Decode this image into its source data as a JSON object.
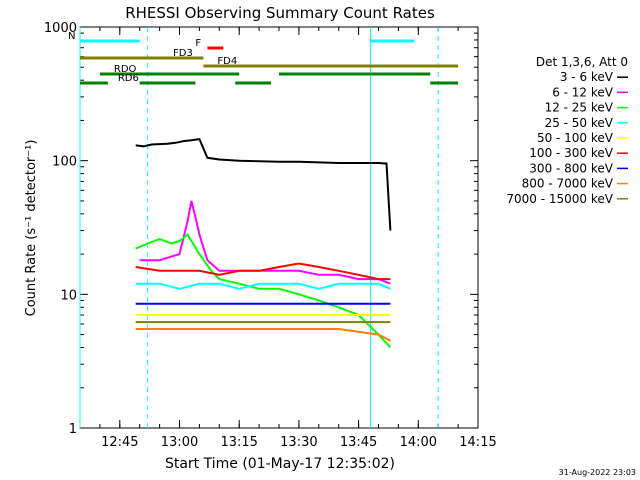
{
  "chart_data": {
    "type": "line",
    "title": "RHESSI Observing Summary Count Rates",
    "xlabel": "Start Time (01-May-17 12:35:02)",
    "ylabel": "Count Rate (s⁻¹ detector⁻¹)",
    "ylim": [
      1,
      1000
    ],
    "yscale": "log",
    "xlim": [
      "12:35",
      "14:15"
    ],
    "x_ticks": [
      "12:45",
      "13:00",
      "13:15",
      "13:30",
      "13:45",
      "14:00",
      "14:15"
    ],
    "y_ticks": [
      "1",
      "10",
      "100",
      "1000"
    ],
    "legend_title": "Det 1,3,6, Att 0",
    "legend_position": "right",
    "timestamp": "31-Aug-2022 23:03",
    "series": [
      {
        "name": "3 - 6 keV",
        "color": "#000000",
        "x": [
          "12:49",
          "12:51",
          "12:53",
          "12:55",
          "12:57",
          "12:59",
          "13:01",
          "13:03",
          "13:05",
          "13:07",
          "13:10",
          "13:15",
          "13:20",
          "13:25",
          "13:30",
          "13:35",
          "13:40",
          "13:45",
          "13:50",
          "13:52",
          "13:53"
        ],
        "y": [
          130,
          128,
          132,
          133,
          134,
          136,
          140,
          142,
          145,
          105,
          102,
          100,
          99,
          98,
          98,
          97,
          96,
          96,
          96,
          95,
          30
        ]
      },
      {
        "name": "6 - 12 keV",
        "color": "#ff00ff",
        "x": [
          "12:50",
          "12:55",
          "13:00",
          "13:02",
          "13:03",
          "13:04",
          "13:05",
          "13:07",
          "13:10",
          "13:15",
          "13:20",
          "13:25",
          "13:30",
          "13:35",
          "13:40",
          "13:45",
          "13:50",
          "13:53"
        ],
        "y": [
          18,
          18,
          20,
          35,
          50,
          38,
          28,
          18,
          15,
          15,
          15,
          15,
          15,
          14,
          14,
          13,
          13,
          12
        ]
      },
      {
        "name": "12 - 25 keV",
        "color": "#00ff00",
        "x": [
          "12:49",
          "12:52",
          "12:55",
          "12:58",
          "13:00",
          "13:02",
          "13:05",
          "13:08",
          "13:10",
          "13:15",
          "13:20",
          "13:25",
          "13:30",
          "13:35",
          "13:40",
          "13:45",
          "13:50",
          "13:53"
        ],
        "y": [
          22,
          24,
          26,
          24,
          25,
          28,
          20,
          15,
          13,
          12,
          11,
          11,
          10,
          9,
          8,
          7,
          5,
          4
        ]
      },
      {
        "name": "25 - 50 keV",
        "color": "#00ffff",
        "x": [
          "12:49",
          "12:55",
          "13:00",
          "13:05",
          "13:10",
          "13:15",
          "13:20",
          "13:25",
          "13:30",
          "13:35",
          "13:40",
          "13:45",
          "13:50",
          "13:53"
        ],
        "y": [
          12,
          12,
          11,
          12,
          12,
          11,
          12,
          12,
          12,
          11,
          12,
          12,
          12,
          11
        ]
      },
      {
        "name": "50 - 100 keV",
        "color": "#ffff00",
        "x": [
          "12:49",
          "12:55",
          "13:00",
          "13:10",
          "13:20",
          "13:30",
          "13:40",
          "13:50",
          "13:53"
        ],
        "y": [
          7,
          7,
          7,
          7,
          7,
          7,
          7,
          7,
          7
        ]
      },
      {
        "name": "100 - 300 keV",
        "color": "#ff0000",
        "x": [
          "12:49",
          "12:55",
          "13:00",
          "13:05",
          "13:10",
          "13:15",
          "13:20",
          "13:25",
          "13:30",
          "13:35",
          "13:40",
          "13:45",
          "13:50",
          "13:53"
        ],
        "y": [
          16,
          15,
          15,
          15,
          14,
          15,
          15,
          16,
          17,
          16,
          15,
          14,
          13,
          13
        ]
      },
      {
        "name": "300 - 800 keV",
        "color": "#0000ff",
        "x": [
          "12:49",
          "12:55",
          "13:00",
          "13:10",
          "13:20",
          "13:30",
          "13:40",
          "13:50",
          "13:53"
        ],
        "y": [
          8.5,
          8.5,
          8.5,
          8.5,
          8.5,
          8.5,
          8.5,
          8.5,
          8.5
        ]
      },
      {
        "name": "800 - 7000 keV",
        "color": "#ff8000",
        "x": [
          "12:49",
          "12:55",
          "13:00",
          "13:10",
          "13:20",
          "13:30",
          "13:40",
          "13:50",
          "13:53"
        ],
        "y": [
          5.5,
          5.5,
          5.5,
          5.5,
          5.5,
          5.5,
          5.5,
          5.0,
          4.5
        ]
      },
      {
        "name": "7000 - 15000 keV",
        "color": "#808000",
        "x": [
          "12:49",
          "12:55",
          "13:00",
          "13:10",
          "13:20",
          "13:30",
          "13:40",
          "13:50",
          "13:53"
        ],
        "y": [
          6.2,
          6.2,
          6.2,
          6.2,
          6.2,
          6.2,
          6.2,
          6.2,
          6.2
        ]
      }
    ],
    "flag_bars": [
      {
        "label": "N",
        "color": "#00ffff",
        "segments": [
          [
            "12:35",
            "12:50"
          ],
          [
            "13:48",
            "13:59"
          ]
        ]
      },
      {
        "label": "F",
        "color": "#ff0000",
        "segments": [
          [
            "13:07",
            "13:11"
          ]
        ]
      },
      {
        "label": "FD3",
        "color": "#808000",
        "segments": [
          [
            "12:35",
            "13:06"
          ]
        ]
      },
      {
        "label": "FD4",
        "color": "#808000",
        "segments": [
          [
            "13:06",
            "14:10"
          ]
        ]
      },
      {
        "label": "RDO",
        "color": "#008000",
        "segments": [
          [
            "12:40",
            "13:15"
          ],
          [
            "13:25",
            "14:03"
          ]
        ]
      },
      {
        "label": "RD6",
        "color": "#008000",
        "segments": [
          [
            "12:35",
            "12:42"
          ],
          [
            "12:50",
            "13:04"
          ],
          [
            "13:14",
            "13:23"
          ],
          [
            "14:03",
            "14:10"
          ]
        ]
      }
    ],
    "vlines": [
      {
        "x": "12:35",
        "color": "#00ffff",
        "style": "solid"
      },
      {
        "x": "12:52",
        "color": "#00ffff",
        "style": "dashed"
      },
      {
        "x": "13:48",
        "color": "#00ffff",
        "style": "solid"
      },
      {
        "x": "14:05",
        "color": "#00ffff",
        "style": "dashed"
      }
    ]
  }
}
